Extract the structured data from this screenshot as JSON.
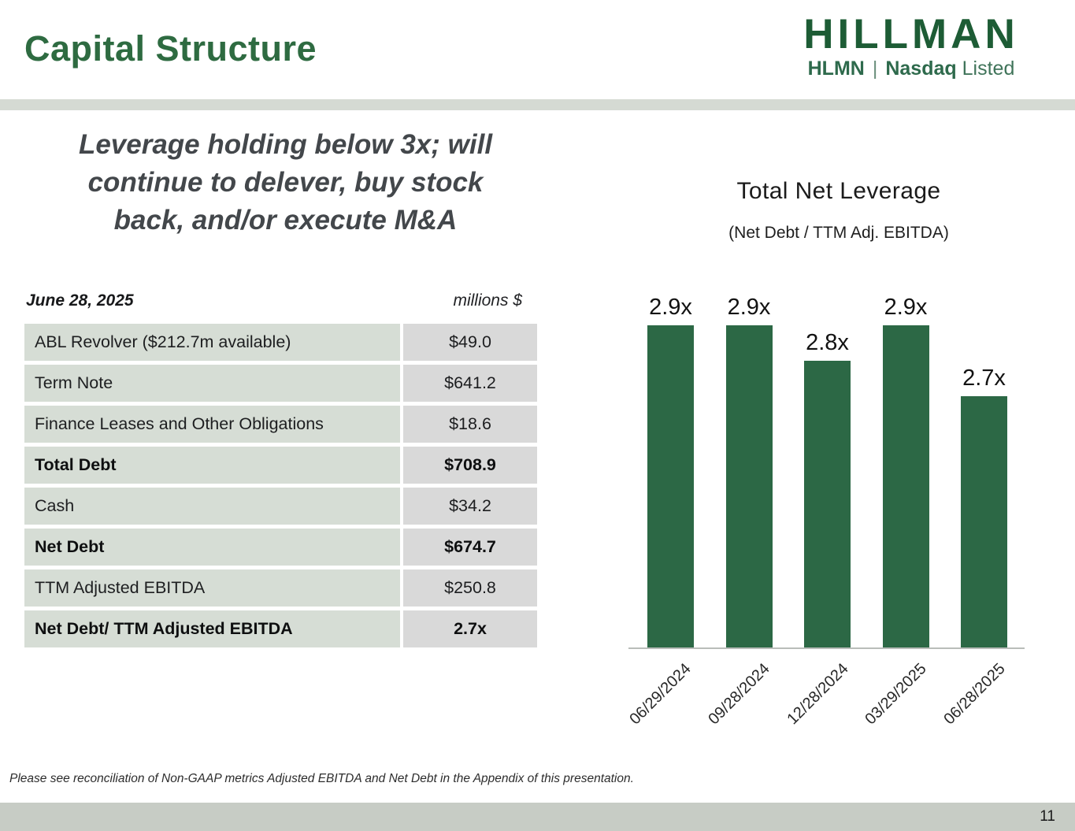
{
  "slide": {
    "title": "Capital Structure",
    "page_number": "11",
    "footnote": "Please see reconciliation of Non-GAAP metrics Adjusted EBITDA and Net Debt in the Appendix of this presentation."
  },
  "logo": {
    "wordmark": "HILLMAN",
    "ticker": "HLMN",
    "separator": "|",
    "exchange_bold": "Nasdaq",
    "exchange_light": "Listed"
  },
  "headline": {
    "lines": [
      "Leverage holding below 3x; will",
      "continue to delever, buy stock",
      "back, and/or execute M&A"
    ]
  },
  "table": {
    "date_header": "June 28, 2025",
    "units_header": "millions $",
    "rows": [
      {
        "label": "ABL Revolver ($212.7m available)",
        "value": "$49.0",
        "bold": false
      },
      {
        "label": "Term Note",
        "value": "$641.2",
        "bold": false
      },
      {
        "label": "Finance Leases and Other Obligations",
        "value": "$18.6",
        "bold": false
      },
      {
        "label": "Total Debt",
        "value": "$708.9",
        "bold": true
      },
      {
        "label": "Cash",
        "value": "$34.2",
        "bold": false
      },
      {
        "label": "Net Debt",
        "value": "$674.7",
        "bold": true
      },
      {
        "label": "TTM Adjusted EBITDA",
        "value": "$250.8",
        "bold": false
      },
      {
        "label": "Net Debt/ TTM Adjusted EBITDA",
        "value": "2.7x",
        "bold": true
      }
    ]
  },
  "chart_data": {
    "type": "bar",
    "title": "Total Net Leverage",
    "subtitle": "(Net Debt / TTM Adj. EBITDA)",
    "categories": [
      "06/29/2024",
      "09/28/2024",
      "12/28/2024",
      "03/29/2025",
      "06/28/2025"
    ],
    "values": [
      2.9,
      2.9,
      2.8,
      2.9,
      2.7
    ],
    "labels": [
      "2.9x",
      "2.9x",
      "2.8x",
      "2.9x",
      "2.7x"
    ],
    "xlabel": "",
    "ylabel": "",
    "ylim": [
      2.0,
      3.0
    ],
    "grid": false,
    "legend": false,
    "bar_color": "#2c6845"
  },
  "colors": {
    "title_green": "#2e6b41",
    "logo_green": "#1d5c35",
    "bar_green": "#2c6845",
    "table_label_bg": "#d6ddd5",
    "table_value_bg": "#d9d9d9",
    "divider": "#d5dad3",
    "bottom_bar": "#c7ccc5"
  }
}
